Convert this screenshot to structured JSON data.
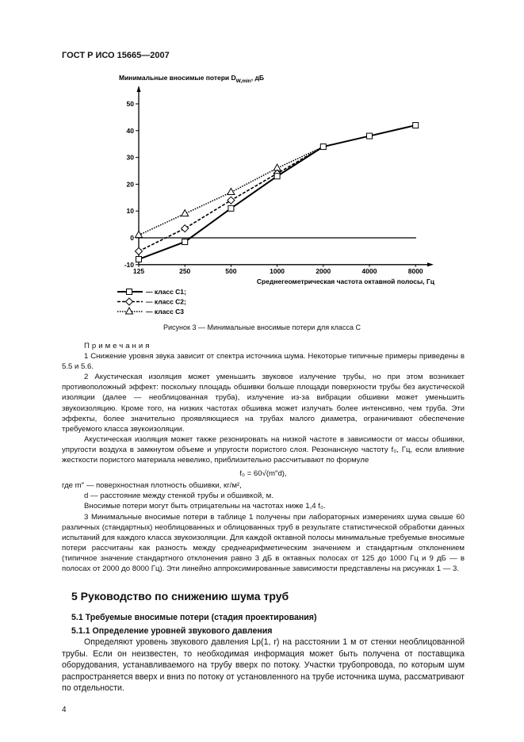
{
  "header": "ГОСТ Р ИСО 15665—2007",
  "chart_data": {
    "type": "line",
    "ylabel": "Минимальные вносимые потери D",
    "ylabel_sub": "W,min",
    "ylabel_unit": ", дБ",
    "xlabel": "Среднегеометрическая частота октавной полосы, Гц",
    "categories": [
      "125",
      "250",
      "500",
      "1000",
      "2000",
      "4000",
      "8000"
    ],
    "yticks": [
      -10,
      0,
      10,
      20,
      30,
      40,
      50
    ],
    "ylim": [
      -10,
      55
    ],
    "grid": false,
    "legend_position": "bottom-left",
    "series": [
      {
        "name": "— класс C1;",
        "marker": "square",
        "style": "solid",
        "values": [
          -8,
          -1.5,
          11,
          23,
          34,
          38,
          42
        ]
      },
      {
        "name": "— класс C2;",
        "marker": "diamond",
        "style": "dashed",
        "values": [
          -5,
          3.5,
          14,
          24,
          34,
          null,
          null
        ]
      },
      {
        "name": "— класс C3",
        "marker": "triangle",
        "style": "dotted",
        "values": [
          1,
          9,
          17,
          26,
          34,
          null,
          null
        ]
      }
    ]
  },
  "caption": "Рисунок 3 — Минимальные вносимые потери для класса С",
  "notes_title": "Примечания",
  "note1": "1  Снижение уровня звука зависит от спектра источника шума. Некоторые типичные примеры приведены в 5.5 и 5.6.",
  "note2": "2  Акустическая изоляция может уменьшить звуковое излучение трубы, но при этом возникает противоположный эффект: поскольку площадь обшивки больше площади поверхности трубы без акустической изоляции (далее — необлицованная труба), излучение из-за вибрации обшивки может уменьшить звукоизоляцию. Кроме того, на низких частотах обшивка может излучать более интенсивно, чем труба. Эти эффекты, более значительно проявляющиеся на трубах малого диаметра, ограничивают обеспечение требуемого класса звукоизоляции.",
  "note2b": "Акустическая изоляция может также резонировать на низкой частоте в зависимости от массы обшивки, упругости воздуха в замкнутом объеме и упругости пористого слоя. Резонансную частоту f₀, Гц, если влияние жесткости пористого материала невелико, приблизительно рассчитывают по формуле",
  "formula": "f₀ = 60√(m″d),",
  "where1": "где m″ — поверхностная плотность обшивки, кг/м²,",
  "where2": "d — расстояние между стенкой трубы и обшивкой, м.",
  "neg": "Вносимые потери могут быть отрицательны на частотах ниже 1,4 f₀.",
  "note3": "3  Минимальные вносимые потери в таблице 1 получены при лабораторных измерениях шума свыше 60 различных (стандартных) необлицованных и облицованных труб в результате статистической обработки данных испытаний для каждого класса звукоизоляции. Для каждой октавной полосы минимальные требуемые вносимые потери рассчитаны как разность между среднеарифметическим значением и стандартным отклонением (типичное значение стандартного отклонения равно 3 дБ в октавных полосах от 125 до 1000 Гц и 9 дБ — в полосах от 2000 до 8000 Гц). Эти линейно аппроксимированные зависимости представлены на рисунках 1 — 3.",
  "section5": "5  Руководство по снижению шума труб",
  "section51": "5.1  Требуемые вносимые потери (стадия проектирования)",
  "section511": "5.1.1  Определение уровней звукового давления",
  "para511": "Определяют уровень звукового давления Lp(1, r) на расстоянии 1 м от стенки необлицованной трубы. Если он неизвестен, то необходимая информация может быть получена от поставщика оборудования, устанавливаемого на трубу вверх по потоку. Участки трубопровода, по которым шум распространяется вверх и вниз по потоку от установленного на трубе источника шума, рассматривают по отдельности.",
  "page_number": "4"
}
